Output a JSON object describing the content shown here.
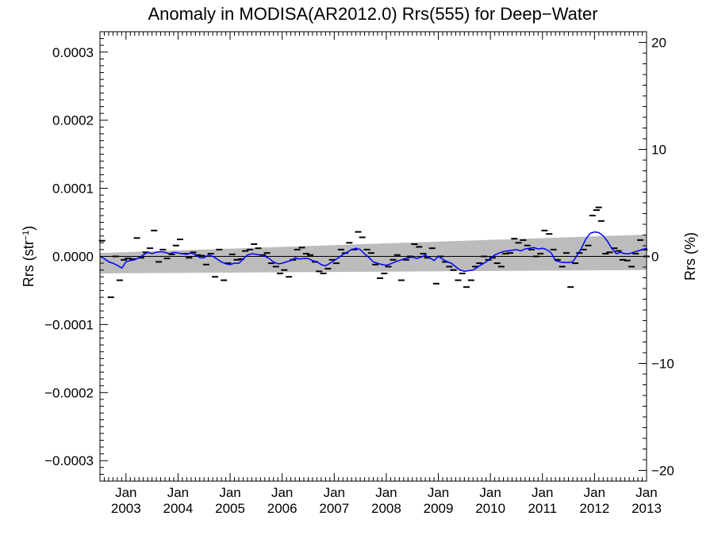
{
  "chart_data": {
    "type": "line",
    "title": "Anomaly in MODISA(AR2012.0) Rrs(555) for Deep−Water",
    "ylabel_main": "Rrs (str",
    "ylabel_sup": "−1",
    "ylabel_close": ")",
    "ylabel_right": "Rrs (%)",
    "ylim": [
      -0.00033,
      0.00033
    ],
    "ylim_right": [
      -21.0,
      21.0
    ],
    "xlim": [
      2002.5,
      2013.0
    ],
    "yticks": [
      {
        "v": 0.0003,
        "label": "0.0003"
      },
      {
        "v": 0.0002,
        "label": "0.0002"
      },
      {
        "v": 0.0001,
        "label": "0.0001"
      },
      {
        "v": 0.0,
        "label": "0.0000"
      },
      {
        "v": -0.0001,
        "label": "−0.0001"
      },
      {
        "v": -0.0002,
        "label": "−0.0002"
      },
      {
        "v": -0.0003,
        "label": "−0.0003"
      }
    ],
    "yticks_right": [
      {
        "v": 20,
        "label": "20"
      },
      {
        "v": 10,
        "label": "10"
      },
      {
        "v": 0,
        "label": "0"
      },
      {
        "v": -10,
        "label": "−10"
      },
      {
        "v": -20,
        "label": "−20"
      }
    ],
    "xticks": [
      {
        "v": 2003,
        "month": "Jan",
        "year": "2003"
      },
      {
        "v": 2004,
        "month": "Jan",
        "year": "2004"
      },
      {
        "v": 2005,
        "month": "Jan",
        "year": "2005"
      },
      {
        "v": 2006,
        "month": "Jan",
        "year": "2006"
      },
      {
        "v": 2007,
        "month": "Jan",
        "year": "2007"
      },
      {
        "v": 2008,
        "month": "Jan",
        "year": "2008"
      },
      {
        "v": 2009,
        "month": "Jan",
        "year": "2009"
      },
      {
        "v": 2010,
        "month": "Jan",
        "year": "2010"
      },
      {
        "v": 2011,
        "month": "Jan",
        "year": "2011"
      },
      {
        "v": 2012,
        "month": "Jan",
        "year": "2012"
      },
      {
        "v": 2013,
        "month": "Jan",
        "year": "2013"
      }
    ],
    "band": {
      "start": [
        2002.5,
        5e-06,
        -2.5e-05
      ],
      "end": [
        2013.0,
        3.2e-05,
        -2e-05
      ]
    },
    "anomaly_points": [
      [
        2002.54,
        2.3e-05
      ],
      [
        2002.71,
        -6e-05
      ],
      [
        2002.8,
        0.0
      ],
      [
        2002.88,
        -3.5e-05
      ],
      [
        2002.96,
        -5e-06
      ],
      [
        2003.04,
        -3e-06
      ],
      [
        2003.13,
        -4e-06
      ],
      [
        2003.21,
        2.7e-05
      ],
      [
        2003.29,
        -2e-06
      ],
      [
        2003.38,
        6e-06
      ],
      [
        2003.46,
        1.2e-05
      ],
      [
        2003.54,
        3.8e-05
      ],
      [
        2003.63,
        -8e-06
      ],
      [
        2003.71,
        1e-05
      ],
      [
        2003.79,
        -3e-06
      ],
      [
        2003.88,
        3e-06
      ],
      [
        2003.96,
        1.6e-05
      ],
      [
        2004.04,
        2.5e-05
      ],
      [
        2004.13,
        4e-06
      ],
      [
        2004.21,
        -2e-06
      ],
      [
        2004.29,
        6e-06
      ],
      [
        2004.38,
        2e-06
      ],
      [
        2004.46,
        1e-06
      ],
      [
        2004.54,
        -1.2e-05
      ],
      [
        2004.63,
        4e-06
      ],
      [
        2004.71,
        -3e-05
      ],
      [
        2004.79,
        1e-05
      ],
      [
        2004.88,
        -3.5e-05
      ],
      [
        2004.96,
        -1e-05
      ],
      [
        2005.04,
        3e-06
      ],
      [
        2005.13,
        -5e-06
      ],
      [
        2005.21,
        -4e-06
      ],
      [
        2005.29,
        8e-06
      ],
      [
        2005.38,
        1e-05
      ],
      [
        2005.46,
        1.8e-05
      ],
      [
        2005.54,
        1.2e-05
      ],
      [
        2005.63,
        2e-06
      ],
      [
        2005.71,
        5e-06
      ],
      [
        2005.79,
        -1e-05
      ],
      [
        2005.88,
        -1.5e-05
      ],
      [
        2005.96,
        -2.5e-05
      ],
      [
        2006.04,
        -2e-05
      ],
      [
        2006.13,
        -3e-05
      ],
      [
        2006.21,
        -5e-06
      ],
      [
        2006.29,
        1e-05
      ],
      [
        2006.38,
        1.3e-05
      ],
      [
        2006.46,
        4e-06
      ],
      [
        2006.54,
        2e-06
      ],
      [
        2006.63,
        -8e-06
      ],
      [
        2006.71,
        -2.2e-05
      ],
      [
        2006.79,
        -2.5e-05
      ],
      [
        2006.88,
        -1.8e-05
      ],
      [
        2006.96,
        -5e-06
      ],
      [
        2007.04,
        -1e-05
      ],
      [
        2007.13,
        1e-05
      ],
      [
        2007.21,
        5e-06
      ],
      [
        2007.29,
        2e-05
      ],
      [
        2007.38,
        1e-05
      ],
      [
        2007.46,
        3.6e-05
      ],
      [
        2007.54,
        2.8e-05
      ],
      [
        2007.63,
        1e-05
      ],
      [
        2007.71,
        5e-06
      ],
      [
        2007.79,
        -1.2e-05
      ],
      [
        2007.88,
        -3.2e-05
      ],
      [
        2007.96,
        -2.5e-05
      ],
      [
        2008.04,
        -1.5e-05
      ],
      [
        2008.13,
        -5e-06
      ],
      [
        2008.21,
        2e-06
      ],
      [
        2008.29,
        -3.5e-05
      ],
      [
        2008.38,
        -5e-06
      ],
      [
        2008.46,
        0.0
      ],
      [
        2008.54,
        1.8e-05
      ],
      [
        2008.63,
        1.4e-05
      ],
      [
        2008.71,
        4e-06
      ],
      [
        2008.79,
        -2e-06
      ],
      [
        2008.88,
        1.2e-05
      ],
      [
        2008.96,
        -4e-05
      ],
      [
        2009.04,
        0.0
      ],
      [
        2009.13,
        -8e-06
      ],
      [
        2009.21,
        -1.5e-05
      ],
      [
        2009.29,
        -2e-05
      ],
      [
        2009.38,
        -3.5e-05
      ],
      [
        2009.46,
        -2.5e-05
      ],
      [
        2009.54,
        -4.5e-05
      ],
      [
        2009.63,
        -3.5e-05
      ],
      [
        2009.71,
        -1.5e-05
      ],
      [
        2009.79,
        -1e-05
      ],
      [
        2009.88,
        0.0
      ],
      [
        2009.96,
        -5e-06
      ],
      [
        2010.04,
        -2e-06
      ],
      [
        2010.13,
        -1e-05
      ],
      [
        2010.21,
        -1.5e-05
      ],
      [
        2010.29,
        4e-06
      ],
      [
        2010.38,
        5e-06
      ],
      [
        2010.46,
        2.6e-05
      ],
      [
        2010.54,
        2e-05
      ],
      [
        2010.63,
        2.4e-05
      ],
      [
        2010.71,
        1.6e-05
      ],
      [
        2010.79,
        1e-05
      ],
      [
        2010.88,
        0.0
      ],
      [
        2010.96,
        4e-06
      ],
      [
        2011.04,
        3.8e-05
      ],
      [
        2011.13,
        3.3e-05
      ],
      [
        2011.21,
        1e-05
      ],
      [
        2011.29,
        -5e-06
      ],
      [
        2011.38,
        -1.5e-05
      ],
      [
        2011.46,
        5e-06
      ],
      [
        2011.54,
        -4.5e-05
      ],
      [
        2011.63,
        -1e-05
      ],
      [
        2011.71,
        5e-06
      ],
      [
        2011.79,
        1e-05
      ],
      [
        2011.88,
        1.6e-05
      ],
      [
        2011.96,
        6e-05
      ],
      [
        2012.04,
        6.8e-05
      ],
      [
        2012.08,
        7.2e-05
      ],
      [
        2012.13,
        5.2e-05
      ],
      [
        2012.21,
        4e-06
      ],
      [
        2012.29,
        6e-06
      ],
      [
        2012.38,
        1.2e-05
      ],
      [
        2012.46,
        8e-06
      ],
      [
        2012.54,
        -5e-06
      ],
      [
        2012.63,
        -6e-06
      ],
      [
        2012.71,
        -1.5e-05
      ],
      [
        2012.79,
        4e-06
      ],
      [
        2012.88,
        2.4e-05
      ],
      [
        2012.96,
        1e-05
      ],
      [
        2013.0,
        0.0
      ]
    ],
    "smoothed_line": [
      [
        2002.5,
        0.0
      ],
      [
        2002.58,
        -3e-06
      ],
      [
        2002.67,
        -8e-06
      ],
      [
        2002.75,
        -1e-05
      ],
      [
        2002.83,
        -1.3e-05
      ],
      [
        2002.92,
        -1.7e-05
      ],
      [
        2003.0,
        -8e-06
      ],
      [
        2003.08,
        -6e-06
      ],
      [
        2003.17,
        -5e-06
      ],
      [
        2003.25,
        -2e-06
      ],
      [
        2003.33,
        2e-06
      ],
      [
        2003.42,
        6e-06
      ],
      [
        2003.5,
        4e-06
      ],
      [
        2003.58,
        6e-06
      ],
      [
        2003.67,
        7e-06
      ],
      [
        2003.75,
        6e-06
      ],
      [
        2003.83,
        4e-06
      ],
      [
        2003.92,
        6e-06
      ],
      [
        2004.0,
        5e-06
      ],
      [
        2004.08,
        4e-06
      ],
      [
        2004.17,
        3e-06
      ],
      [
        2004.25,
        5e-06
      ],
      [
        2004.33,
        3e-06
      ],
      [
        2004.42,
        -2e-06
      ],
      [
        2004.5,
        -2e-06
      ],
      [
        2004.58,
        2e-06
      ],
      [
        2004.67,
        0.0
      ],
      [
        2004.75,
        -4e-06
      ],
      [
        2004.83,
        -8e-06
      ],
      [
        2004.92,
        -1.1e-05
      ],
      [
        2005.0,
        -1.2e-05
      ],
      [
        2005.08,
        -1e-05
      ],
      [
        2005.17,
        -1e-05
      ],
      [
        2005.25,
        -4e-06
      ],
      [
        2005.33,
        2e-06
      ],
      [
        2005.42,
        4e-06
      ],
      [
        2005.5,
        3e-06
      ],
      [
        2005.58,
        2e-06
      ],
      [
        2005.67,
        0.0
      ],
      [
        2005.75,
        -3e-06
      ],
      [
        2005.83,
        -8e-06
      ],
      [
        2005.92,
        -1.1e-05
      ],
      [
        2006.0,
        -1e-05
      ],
      [
        2006.08,
        -8e-06
      ],
      [
        2006.17,
        -6e-06
      ],
      [
        2006.25,
        -2e-06
      ],
      [
        2006.33,
        -4e-06
      ],
      [
        2006.42,
        -3e-06
      ],
      [
        2006.5,
        -3e-06
      ],
      [
        2006.58,
        -6e-06
      ],
      [
        2006.67,
        -8e-06
      ],
      [
        2006.75,
        -1.2e-05
      ],
      [
        2006.83,
        -1.4e-05
      ],
      [
        2006.92,
        -1e-05
      ],
      [
        2007.0,
        -6e-06
      ],
      [
        2007.08,
        -2e-06
      ],
      [
        2007.17,
        3e-06
      ],
      [
        2007.25,
        6e-06
      ],
      [
        2007.33,
        1e-05
      ],
      [
        2007.42,
        1.2e-05
      ],
      [
        2007.5,
        1e-05
      ],
      [
        2007.58,
        4e-06
      ],
      [
        2007.67,
        -2e-06
      ],
      [
        2007.75,
        -8e-06
      ],
      [
        2007.83,
        -1e-05
      ],
      [
        2007.92,
        -1.2e-05
      ],
      [
        2008.0,
        -1.3e-05
      ],
      [
        2008.08,
        -1.1e-05
      ],
      [
        2008.17,
        -8e-06
      ],
      [
        2008.25,
        -6e-06
      ],
      [
        2008.33,
        -4e-06
      ],
      [
        2008.42,
        -2e-06
      ],
      [
        2008.5,
        -1e-06
      ],
      [
        2008.58,
        -3e-06
      ],
      [
        2008.67,
        -1e-06
      ],
      [
        2008.75,
        2e-06
      ],
      [
        2008.83,
        -2e-06
      ],
      [
        2008.92,
        -6e-06
      ],
      [
        2009.0,
        0.0
      ],
      [
        2009.08,
        -4e-06
      ],
      [
        2009.17,
        -8e-06
      ],
      [
        2009.25,
        -1e-05
      ],
      [
        2009.33,
        -1.5e-05
      ],
      [
        2009.42,
        -2e-05
      ],
      [
        2009.5,
        -2.2e-05
      ],
      [
        2009.58,
        -2.1e-05
      ],
      [
        2009.67,
        -2e-05
      ],
      [
        2009.75,
        -1.6e-05
      ],
      [
        2009.83,
        -1.2e-05
      ],
      [
        2009.92,
        -8e-06
      ],
      [
        2010.0,
        -3e-06
      ],
      [
        2010.08,
        2e-06
      ],
      [
        2010.17,
        5e-06
      ],
      [
        2010.25,
        7e-06
      ],
      [
        2010.33,
        8e-06
      ],
      [
        2010.42,
        9e-06
      ],
      [
        2010.5,
        1e-05
      ],
      [
        2010.58,
        8e-06
      ],
      [
        2010.67,
        1.1e-05
      ],
      [
        2010.75,
        1.2e-05
      ],
      [
        2010.83,
        1.3e-05
      ],
      [
        2010.92,
        1.1e-05
      ],
      [
        2011.0,
        1.2e-05
      ],
      [
        2011.08,
        1e-05
      ],
      [
        2011.17,
        5e-06
      ],
      [
        2011.25,
        -6e-06
      ],
      [
        2011.33,
        -8e-06
      ],
      [
        2011.42,
        -9e-06
      ],
      [
        2011.5,
        -9e-06
      ],
      [
        2011.58,
        -8e-06
      ],
      [
        2011.67,
        2e-06
      ],
      [
        2011.75,
        1.2e-05
      ],
      [
        2011.83,
        2.5e-05
      ],
      [
        2011.92,
        3.4e-05
      ],
      [
        2012.0,
        3.6e-05
      ],
      [
        2012.08,
        3.5e-05
      ],
      [
        2012.17,
        3e-05
      ],
      [
        2012.25,
        2.2e-05
      ],
      [
        2012.33,
        1.2e-05
      ],
      [
        2012.42,
        4e-06
      ],
      [
        2012.5,
        6e-06
      ],
      [
        2012.58,
        4e-06
      ],
      [
        2012.67,
        4e-06
      ],
      [
        2012.75,
        6e-06
      ],
      [
        2012.83,
        8e-06
      ],
      [
        2012.92,
        1e-05
      ],
      [
        2013.0,
        1.2e-05
      ]
    ],
    "colors": {
      "band": "#bcbcbc",
      "smoothed_line": "#0000ff",
      "points": "#000000",
      "axes": "#000000"
    },
    "grid": false
  }
}
